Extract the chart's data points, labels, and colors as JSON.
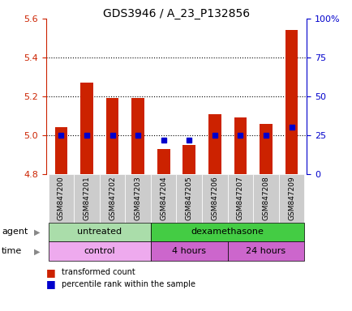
{
  "title": "GDS3946 / A_23_P132856",
  "samples": [
    "GSM847200",
    "GSM847201",
    "GSM847202",
    "GSM847203",
    "GSM847204",
    "GSM847205",
    "GSM847206",
    "GSM847207",
    "GSM847208",
    "GSM847209"
  ],
  "transformed_count": [
    5.04,
    5.27,
    5.19,
    5.19,
    4.93,
    4.95,
    5.11,
    5.09,
    5.06,
    5.54
  ],
  "percentile_rank": [
    25,
    25,
    25,
    25,
    22,
    22,
    25,
    25,
    25,
    30
  ],
  "ylim_left": [
    4.8,
    5.6
  ],
  "ylim_right": [
    0,
    100
  ],
  "yticks_left": [
    4.8,
    5.0,
    5.2,
    5.4,
    5.6
  ],
  "yticks_right": [
    0,
    25,
    50,
    75,
    100
  ],
  "bar_color": "#cc2200",
  "dot_color": "#0000cc",
  "agent_groups": [
    {
      "label": "untreated",
      "start": 0,
      "end": 4,
      "color": "#aaddaa"
    },
    {
      "label": "dexamethasone",
      "start": 4,
      "end": 10,
      "color": "#44cc44"
    }
  ],
  "time_groups": [
    {
      "label": "control",
      "start": 0,
      "end": 4,
      "color": "#eeaaee"
    },
    {
      "label": "4 hours",
      "start": 4,
      "end": 7,
      "color": "#cc66cc"
    },
    {
      "label": "24 hours",
      "start": 7,
      "end": 10,
      "color": "#cc66cc"
    }
  ],
  "agent_row_label": "agent",
  "time_row_label": "time",
  "legend_bar_label": "transformed count",
  "legend_dot_label": "percentile rank within the sample",
  "axis_color_left": "#cc2200",
  "axis_color_right": "#0000cc",
  "dotted_lines": [
    5.0,
    5.2,
    5.4
  ],
  "tick_area_bg": "#cccccc",
  "fig_bg": "#ffffff"
}
